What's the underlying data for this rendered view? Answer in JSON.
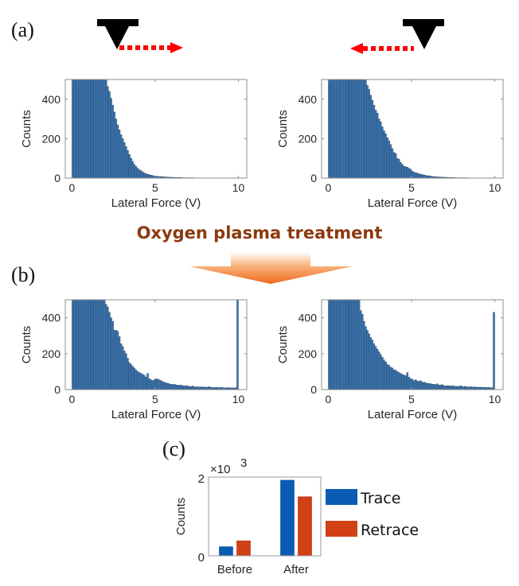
{
  "labels": {
    "panel_a": "(a)",
    "panel_b": "(b)",
    "panel_c": "(c)",
    "treatment": "Oxygen plasma treatment"
  },
  "icons": {
    "tip_left": "afm-tip-icon",
    "tip_right": "afm-tip-icon",
    "arrow_trace": "dotted-arrow-right-icon",
    "arrow_retrace": "dotted-arrow-left-icon",
    "process_arrow": "down-arrow-icon"
  },
  "colors": {
    "hist_bar": "#3d7ab8",
    "hist_edge": "#1b2a3a",
    "trace": "#0a5cb3",
    "retrace": "#d24015",
    "arrow_red": "#ff0000",
    "treatment_text": "#8b3a0e"
  },
  "chart_data": [
    {
      "id": "a-trace",
      "type": "bar",
      "xlabel": "Lateral Force (V)",
      "ylabel": "Counts",
      "xlim": [
        -0.4,
        10.5
      ],
      "ylim": [
        0,
        500
      ],
      "xticks": [
        "0",
        "5",
        "10"
      ],
      "xtick_values": [
        0,
        5,
        10
      ],
      "yticks": [
        "0",
        "200",
        "400"
      ],
      "ytick_values": [
        0,
        200,
        400
      ],
      "bin_start": 0,
      "bin_width": 0.1,
      "values": [
        600,
        600,
        600,
        600,
        600,
        600,
        600,
        600,
        600,
        600,
        600,
        600,
        600,
        600,
        600,
        600,
        600,
        600,
        600,
        600,
        600,
        465,
        440,
        405,
        370,
        335,
        300,
        270,
        245,
        220,
        200,
        180,
        160,
        140,
        120,
        100,
        85,
        70,
        60,
        50,
        42,
        38,
        32,
        26,
        22,
        20,
        17,
        15,
        13,
        11,
        10,
        9,
        8,
        8,
        7,
        6,
        6,
        5,
        5,
        4,
        4,
        4,
        3,
        3,
        3,
        3,
        2,
        2,
        2,
        2,
        2,
        2,
        2,
        1,
        1,
        1,
        1,
        1,
        1,
        1,
        1,
        1,
        1,
        1,
        1,
        1,
        1,
        1,
        1,
        1,
        1,
        0,
        0,
        0,
        0,
        0,
        0,
        0,
        0,
        0
      ]
    },
    {
      "id": "a-retrace",
      "type": "bar",
      "xlabel": "Lateral Force (V)",
      "ylabel": "Counts",
      "xlim": [
        -0.4,
        10.5
      ],
      "ylim": [
        0,
        500
      ],
      "xticks": [
        "0",
        "5",
        "10"
      ],
      "xtick_values": [
        0,
        5,
        10
      ],
      "yticks": [
        "0",
        "200",
        "400"
      ],
      "ytick_values": [
        0,
        200,
        400
      ],
      "bin_start": 0,
      "bin_width": 0.1,
      "values": [
        600,
        600,
        600,
        600,
        600,
        600,
        600,
        600,
        600,
        600,
        600,
        600,
        600,
        600,
        600,
        600,
        600,
        600,
        600,
        600,
        600,
        600,
        600,
        470,
        450,
        420,
        395,
        370,
        345,
        330,
        300,
        285,
        260,
        240,
        225,
        205,
        190,
        170,
        150,
        130,
        125,
        100,
        95,
        80,
        70,
        60,
        58,
        55,
        50,
        45,
        35,
        30,
        28,
        25,
        22,
        20,
        18,
        16,
        14,
        12,
        12,
        10,
        8,
        8,
        7,
        6,
        6,
        5,
        5,
        4,
        4,
        4,
        3,
        3,
        3,
        3,
        2,
        2,
        2,
        2,
        2,
        2,
        2,
        2,
        1,
        1,
        1,
        1,
        1,
        1,
        1,
        1,
        1,
        1,
        1,
        1,
        1,
        0,
        0,
        0
      ]
    },
    {
      "id": "b-trace",
      "type": "bar",
      "xlabel": "Lateral Force (V)",
      "ylabel": "Counts",
      "xlim": [
        -0.4,
        10.5
      ],
      "ylim": [
        0,
        500
      ],
      "xticks": [
        "0",
        "5",
        "10"
      ],
      "xtick_values": [
        0,
        5,
        10
      ],
      "yticks": [
        "0",
        "200",
        "400"
      ],
      "ytick_values": [
        0,
        200,
        400
      ],
      "bin_start": 0,
      "bin_width": 0.1,
      "values": [
        600,
        600,
        600,
        600,
        600,
        600,
        600,
        600,
        600,
        600,
        600,
        600,
        600,
        600,
        600,
        600,
        600,
        600,
        600,
        600,
        475,
        460,
        430,
        400,
        380,
        330,
        330,
        325,
        295,
        255,
        240,
        215,
        200,
        175,
        150,
        140,
        130,
        120,
        110,
        100,
        95,
        90,
        85,
        80,
        70,
        90,
        60,
        55,
        50,
        55,
        60,
        58,
        55,
        50,
        45,
        40,
        38,
        35,
        32,
        30,
        28,
        30,
        26,
        25,
        24,
        26,
        22,
        20,
        22,
        20,
        18,
        17,
        20,
        16,
        15,
        16,
        14,
        15,
        15,
        14,
        13,
        14,
        16,
        12,
        12,
        11,
        12,
        12,
        10,
        12,
        11,
        10,
        10,
        10,
        11,
        9,
        10,
        9,
        10,
        600
      ]
    },
    {
      "id": "b-retrace",
      "type": "bar",
      "xlabel": "Lateral Force (V)",
      "ylabel": "Counts",
      "xlim": [
        -0.4,
        10.5
      ],
      "ylim": [
        0,
        500
      ],
      "xticks": [
        "0",
        "5",
        "10"
      ],
      "xtick_values": [
        0,
        5,
        10
      ],
      "yticks": [
        "0",
        "200",
        "400"
      ],
      "ytick_values": [
        0,
        200,
        400
      ],
      "bin_start": 0,
      "bin_width": 0.1,
      "values": [
        600,
        600,
        600,
        600,
        600,
        600,
        600,
        600,
        600,
        600,
        600,
        600,
        600,
        600,
        600,
        600,
        600,
        600,
        600,
        440,
        420,
        380,
        350,
        330,
        310,
        290,
        275,
        255,
        240,
        225,
        210,
        195,
        180,
        165,
        155,
        140,
        135,
        125,
        120,
        110,
        108,
        100,
        95,
        90,
        85,
        80,
        78,
        95,
        70,
        60,
        58,
        50,
        55,
        48,
        45,
        50,
        40,
        42,
        38,
        35,
        34,
        33,
        30,
        30,
        28,
        32,
        26,
        25,
        28,
        22,
        20,
        22,
        21,
        20,
        22,
        19,
        18,
        18,
        17,
        22,
        17,
        16,
        18,
        15,
        15,
        16,
        14,
        14,
        15,
        13,
        12,
        14,
        12,
        12,
        13,
        11,
        12,
        10,
        11,
        430
      ]
    },
    {
      "id": "c-summary",
      "type": "bar",
      "ylabel": "Counts",
      "ylabel_multiplier": "×10",
      "ylabel_multiplier_exp": "3",
      "categories": [
        "Before",
        "After"
      ],
      "ylim": [
        0,
        2000
      ],
      "yticks": [
        "0",
        "2"
      ],
      "ytick_values": [
        0,
        2000
      ],
      "series": [
        {
          "name": "Trace",
          "values": [
            230,
            1920
          ]
        },
        {
          "name": "Retrace",
          "values": [
            380,
            1500
          ]
        }
      ],
      "legend_position": "right"
    }
  ]
}
